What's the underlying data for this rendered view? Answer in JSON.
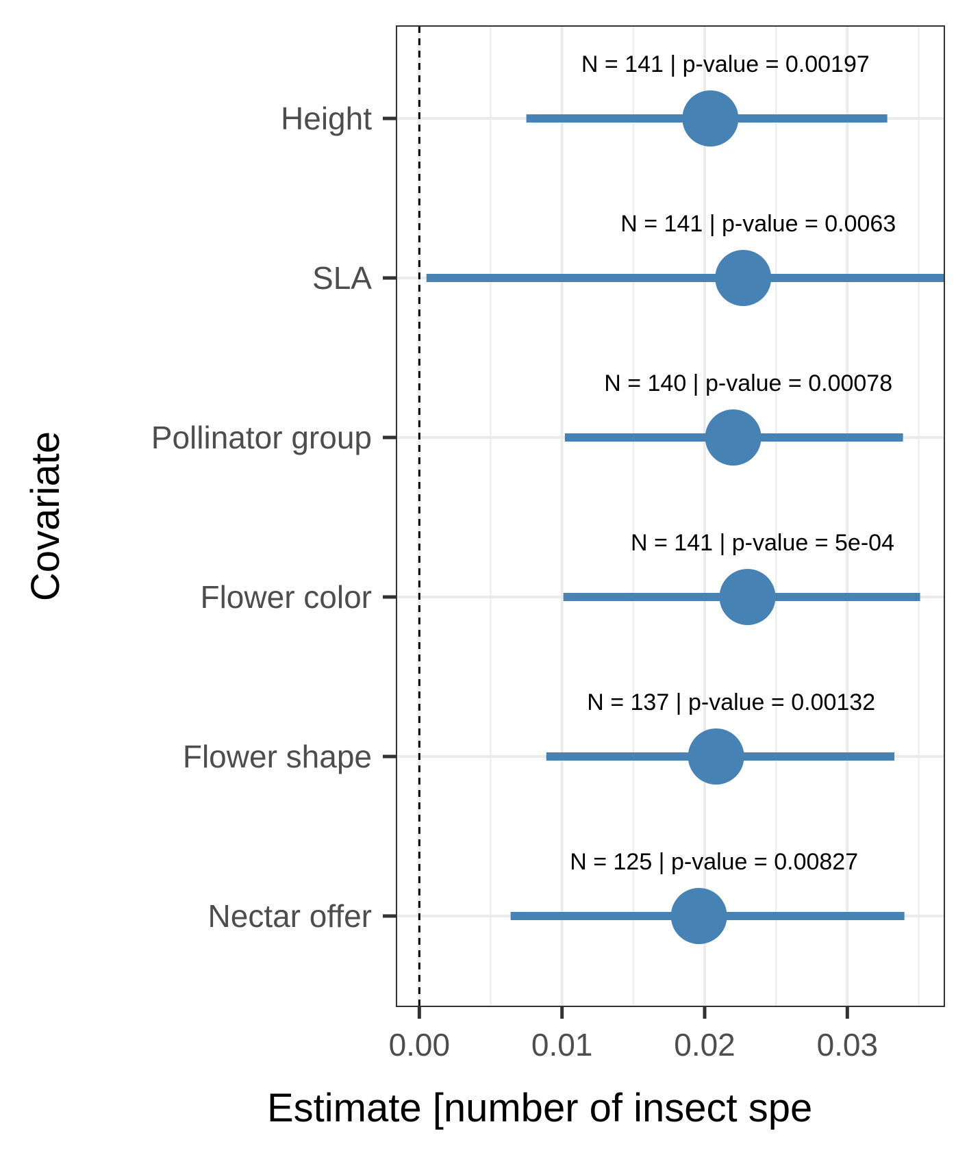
{
  "chart_data": {
    "type": "forest",
    "xlabel": "Estimate [number of insect spe",
    "ylabel": "Covariate",
    "xlim": [
      -0.0016,
      0.0368
    ],
    "xticks": [
      0.0,
      0.01,
      0.02,
      0.03
    ],
    "xtick_labels": [
      "0.00",
      "0.01",
      "0.02",
      "0.03"
    ],
    "reference_line": 0,
    "grid": true,
    "color": "#4682B4",
    "categories": [
      "Height",
      "SLA",
      "Pollinator group",
      "Flower color",
      "Flower shape",
      "Nectar offer"
    ],
    "estimates": [
      0.0204,
      0.0227,
      0.022,
      0.023,
      0.0208,
      0.0196
    ],
    "lower": [
      0.0075,
      0.0005,
      0.0102,
      0.0101,
      0.0089,
      0.0064
    ],
    "upper": [
      0.0328,
      0.04,
      0.0339,
      0.0351,
      0.0333,
      0.034
    ],
    "annotations": [
      "N =  141 | p-value = 0.00197",
      "N =  141 | p-value = 0.0063",
      "N =  140 | p-value = 0.00078",
      "N =  141 | p-value = 5e-04",
      "N =  137 | p-value = 0.00132",
      "N =  125 | p-value = 0.00827"
    ]
  }
}
